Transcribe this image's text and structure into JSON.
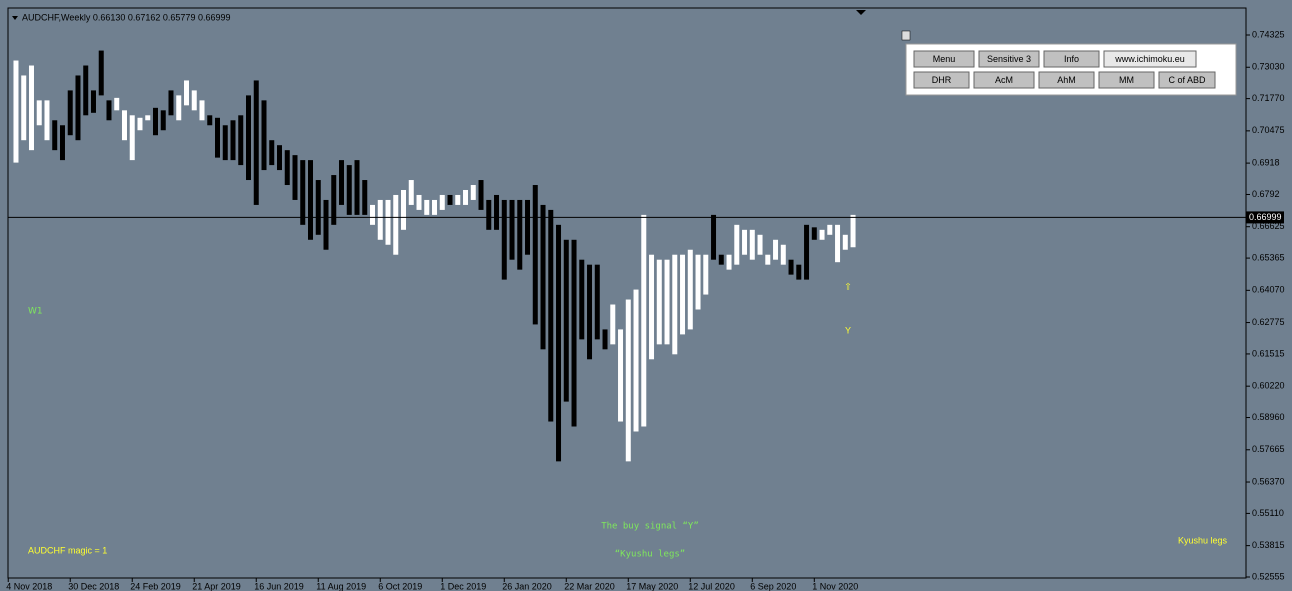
{
  "chart_data": {
    "type": "range_bar",
    "title": "AUDCHF,Weekly  0.66130 0.67162 0.65779 0.66999",
    "high": [
      0.733,
      0.727,
      0.731,
      0.717,
      0.717,
      0.709,
      0.707,
      0.721,
      0.727,
      0.731,
      0.721,
      0.737,
      0.717,
      0.718,
      0.713,
      0.711,
      0.71,
      0.711,
      0.714,
      0.713,
      0.721,
      0.719,
      0.725,
      0.721,
      0.717,
      0.711,
      0.71,
      0.707,
      0.709,
      0.711,
      0.719,
      0.725,
      0.717,
      0.701,
      0.699,
      0.697,
      0.695,
      0.693,
      0.693,
      0.685,
      0.677,
      0.687,
      0.693,
      0.691,
      0.693,
      0.685,
      0.675,
      0.677,
      0.677,
      0.679,
      0.681,
      0.685,
      0.679,
      0.677,
      0.677,
      0.679,
      0.679,
      0.679,
      0.681,
      0.683,
      0.685,
      0.677,
      0.679,
      0.677,
      0.677,
      0.677,
      0.677,
      0.683,
      0.675,
      0.673,
      0.667,
      0.661,
      0.661,
      0.653,
      0.651,
      0.651,
      0.625,
      0.635,
      0.625,
      0.637,
      0.641,
      0.671,
      0.655,
      0.653,
      0.653,
      0.655,
      0.655,
      0.657,
      0.655,
      0.655,
      0.671,
      0.655,
      0.655,
      0.667,
      0.665,
      0.665,
      0.663,
      0.655,
      0.661,
      0.659,
      0.653,
      0.651,
      0.667,
      0.666,
      0.665,
      0.667,
      0.667,
      0.663,
      0.671
    ],
    "low": [
      0.692,
      0.701,
      0.697,
      0.707,
      0.701,
      0.697,
      0.693,
      0.703,
      0.701,
      0.711,
      0.712,
      0.719,
      0.709,
      0.713,
      0.701,
      0.693,
      0.705,
      0.709,
      0.703,
      0.705,
      0.711,
      0.709,
      0.715,
      0.713,
      0.709,
      0.707,
      0.694,
      0.693,
      0.693,
      0.691,
      0.685,
      0.675,
      0.689,
      0.691,
      0.689,
      0.683,
      0.677,
      0.667,
      0.661,
      0.663,
      0.657,
      0.667,
      0.675,
      0.671,
      0.671,
      0.671,
      0.667,
      0.661,
      0.659,
      0.655,
      0.665,
      0.675,
      0.673,
      0.671,
      0.671,
      0.673,
      0.675,
      0.675,
      0.675,
      0.677,
      0.673,
      0.665,
      0.665,
      0.645,
      0.653,
      0.649,
      0.655,
      0.627,
      0.617,
      0.588,
      0.572,
      0.596,
      0.586,
      0.621,
      0.613,
      0.621,
      0.617,
      0.619,
      0.588,
      0.572,
      0.584,
      0.586,
      0.613,
      0.619,
      0.619,
      0.615,
      0.623,
      0.625,
      0.633,
      0.639,
      0.653,
      0.651,
      0.649,
      0.651,
      0.655,
      0.653,
      0.655,
      0.651,
      0.653,
      0.651,
      0.647,
      0.645,
      0.645,
      0.661,
      0.661,
      0.663,
      0.652,
      0.657,
      0.658
    ],
    "colors": [
      "#ffffff",
      "#ffffff",
      "#ffffff",
      "#ffffff",
      "#ffffff",
      "#000000",
      "#000000",
      "#000000",
      "#000000",
      "#000000",
      "#000000",
      "#000000",
      "#000000",
      "#ffffff",
      "#ffffff",
      "#ffffff",
      "#ffffff",
      "#ffffff",
      "#000000",
      "#000000",
      "#000000",
      "#ffffff",
      "#ffffff",
      "#ffffff",
      "#ffffff",
      "#000000",
      "#000000",
      "#000000",
      "#000000",
      "#000000",
      "#000000",
      "#000000",
      "#000000",
      "#000000",
      "#000000",
      "#000000",
      "#000000",
      "#000000",
      "#000000",
      "#000000",
      "#000000",
      "#000000",
      "#000000",
      "#000000",
      "#000000",
      "#000000",
      "#ffffff",
      "#ffffff",
      "#ffffff",
      "#ffffff",
      "#ffffff",
      "#ffffff",
      "#ffffff",
      "#ffffff",
      "#ffffff",
      "#ffffff",
      "#000000",
      "#ffffff",
      "#ffffff",
      "#ffffff",
      "#000000",
      "#000000",
      "#000000",
      "#000000",
      "#000000",
      "#000000",
      "#000000",
      "#000000",
      "#000000",
      "#000000",
      "#000000",
      "#000000",
      "#000000",
      "#000000",
      "#000000",
      "#000000",
      "#000000",
      "#ffffff",
      "#ffffff",
      "#ffffff",
      "#ffffff",
      "#ffffff",
      "#ffffff",
      "#ffffff",
      "#ffffff",
      "#ffffff",
      "#ffffff",
      "#ffffff",
      "#ffffff",
      "#ffffff",
      "#000000",
      "#000000",
      "#ffffff",
      "#ffffff",
      "#ffffff",
      "#ffffff",
      "#ffffff",
      "#ffffff",
      "#ffffff",
      "#ffffff",
      "#000000",
      "#000000",
      "#000000",
      "#000000",
      "#ffffff",
      "#ffffff",
      "#ffffff",
      "#ffffff",
      "#ffffff"
    ],
    "xlim": [
      -1.03,
      158.7
    ],
    "xticks": [
      {
        "value": -1,
        "label": "4 Nov 2018"
      },
      {
        "value": 7,
        "label": "30 Dec 2018"
      },
      {
        "value": 15,
        "label": "24 Feb 2019"
      },
      {
        "value": 23,
        "label": "21 Apr 2019"
      },
      {
        "value": 31,
        "label": "16 Jun 2019"
      },
      {
        "value": 39,
        "label": "11 Aug 2019"
      },
      {
        "value": 47,
        "label": "6 Oct 2019"
      },
      {
        "value": 55,
        "label": "1 Dec 2019"
      },
      {
        "value": 63,
        "label": "26 Jan 2020"
      },
      {
        "value": 71,
        "label": "22 Mar 2020"
      },
      {
        "value": 79,
        "label": "17 May 2020"
      },
      {
        "value": 87,
        "label": "12 Jul 2020"
      },
      {
        "value": 95,
        "label": "6 Sep 2020"
      },
      {
        "value": 103,
        "label": "1 Nov 2020"
      }
    ],
    "ylim": [
      0.52515,
      0.7541
    ],
    "yticks": [
      0.74325,
      {
        "value": 0.7303,
        "label": "0.73030"
      },
      {
        "value": 0.7177,
        "label": "0.71770"
      },
      0.70475,
      0.6918,
      0.6792,
      0.66625,
      0.65365,
      {
        "value": 0.6407,
        "label": "0.64070"
      },
      0.62775,
      0.61515,
      {
        "value": 0.6022,
        "label": "0.60220"
      },
      {
        "value": 0.5896,
        "label": "0.58960"
      },
      0.57665,
      {
        "value": 0.5637,
        "label": "0.56370"
      },
      {
        "value": 0.5511,
        "label": "0.55110"
      },
      0.53815,
      0.52555
    ],
    "last_price": 0.66999,
    "timeframe": "W1",
    "signal": "Y",
    "signal_arrow": "⇧",
    "caption": [
      "The buy signal “Y”",
      "“Kyushu legs”"
    ],
    "magic": "AUDCHF  magic = 1",
    "legend_text": "Kyushu legs",
    "panel": {
      "rows": [
        [
          "Menu",
          "Sensitive 3",
          "Info",
          "www.ichimoku.eu"
        ],
        [
          "DHR",
          "AcM",
          "AhM",
          "MM",
          "C of ABD"
        ]
      ]
    }
  }
}
